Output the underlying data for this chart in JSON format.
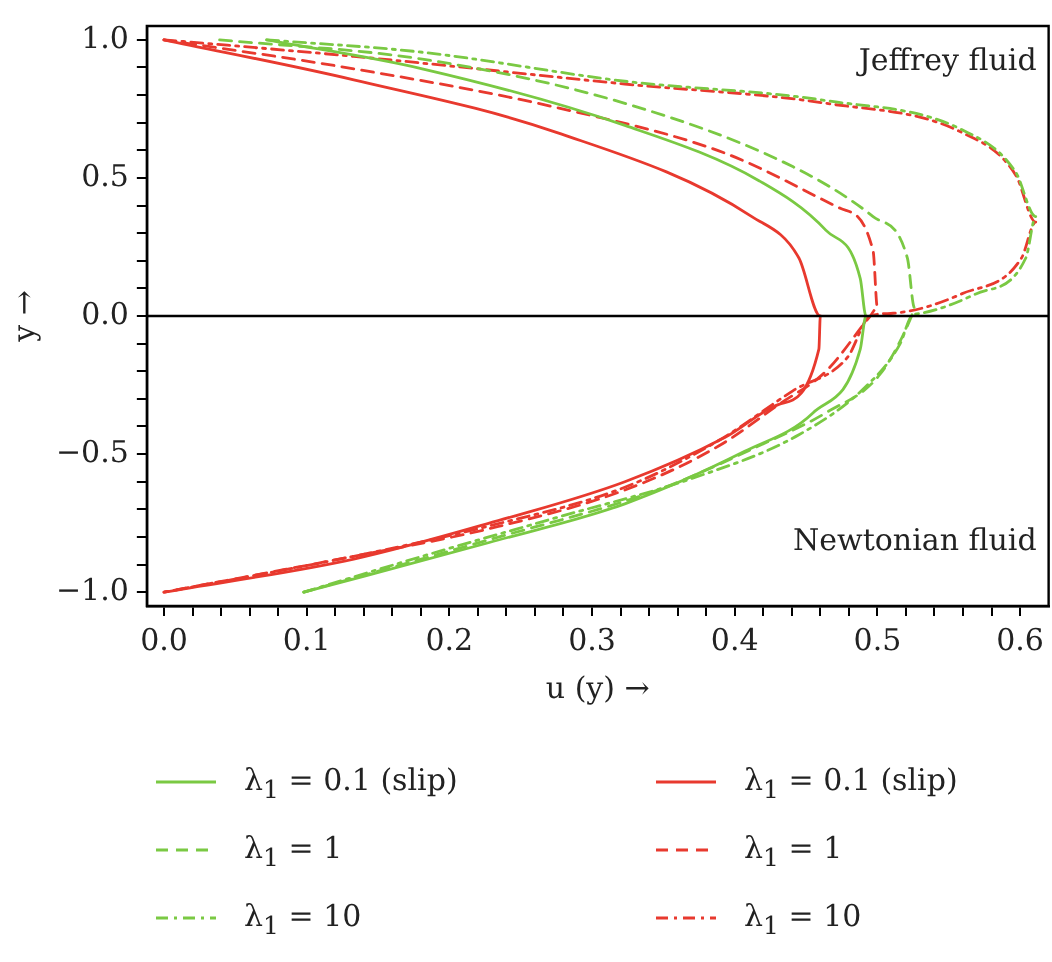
{
  "chart_data": {
    "type": "line",
    "xlabel": "u (y) →",
    "ylabel": "y →",
    "xlim": [
      -0.012,
      0.62
    ],
    "ylim": [
      -1.05,
      1.05
    ],
    "xticks": [
      {
        "value": 0,
        "label": "0.0"
      },
      {
        "value": 0.02,
        "label": null
      },
      {
        "value": 0.04,
        "label": null
      },
      {
        "value": 0.06,
        "label": null
      },
      {
        "value": 0.08,
        "label": null
      },
      {
        "value": 0.1,
        "label": "0.1"
      },
      {
        "value": 0.12,
        "label": null
      },
      {
        "value": 0.14,
        "label": null
      },
      {
        "value": 0.16,
        "label": null
      },
      {
        "value": 0.18,
        "label": null
      },
      {
        "value": 0.2,
        "label": "0.2"
      },
      {
        "value": 0.22,
        "label": null
      },
      {
        "value": 0.24,
        "label": null
      },
      {
        "value": 0.26,
        "label": null
      },
      {
        "value": 0.28,
        "label": null
      },
      {
        "value": 0.3,
        "label": "0.3"
      },
      {
        "value": 0.32,
        "label": null
      },
      {
        "value": 0.34,
        "label": null
      },
      {
        "value": 0.36,
        "label": null
      },
      {
        "value": 0.38,
        "label": null
      },
      {
        "value": 0.4,
        "label": "0.4"
      },
      {
        "value": 0.42,
        "label": null
      },
      {
        "value": 0.44,
        "label": null
      },
      {
        "value": 0.46,
        "label": null
      },
      {
        "value": 0.48,
        "label": null
      },
      {
        "value": 0.5,
        "label": "0.5"
      },
      {
        "value": 0.52,
        "label": null
      },
      {
        "value": 0.54,
        "label": null
      },
      {
        "value": 0.56,
        "label": null
      },
      {
        "value": 0.58,
        "label": null
      },
      {
        "value": 0.6,
        "label": "0.6"
      }
    ],
    "yticks": [
      {
        "value": -1,
        "label": "−1.0"
      },
      {
        "value": -0.9,
        "label": null
      },
      {
        "value": -0.8,
        "label": null
      },
      {
        "value": -0.7,
        "label": null
      },
      {
        "value": -0.6,
        "label": null
      },
      {
        "value": -0.5,
        "label": "−0.5"
      },
      {
        "value": -0.4,
        "label": null
      },
      {
        "value": -0.3,
        "label": null
      },
      {
        "value": -0.2,
        "label": null
      },
      {
        "value": -0.1,
        "label": null
      },
      {
        "value": 0,
        "label": "0.0"
      },
      {
        "value": 0.1,
        "label": null
      },
      {
        "value": 0.2,
        "label": null
      },
      {
        "value": 0.3,
        "label": null
      },
      {
        "value": 0.4,
        "label": null
      },
      {
        "value": 0.5,
        "label": "0.5"
      },
      {
        "value": 0.6,
        "label": null
      },
      {
        "value": 0.7,
        "label": null
      },
      {
        "value": 0.8,
        "label": null
      },
      {
        "value": 0.9,
        "label": null
      },
      {
        "value": 1,
        "label": "1.0"
      }
    ],
    "grid": false,
    "marker": "none",
    "legend": "bottom",
    "ref_lines": [
      {
        "axis": "y",
        "value": 0,
        "color": "#000000",
        "line_style": "solid"
      }
    ],
    "annotations": [
      "Jeffrey fluid",
      "Newtonian fluid"
    ],
    "series": [
      {
        "name": "λ$_{1}$ = 0.1 (slip)",
        "color": "#7ac943",
        "line_style": "solid",
        "x": [
          0.072,
          0.181,
          0.323,
          0.417,
          0.464,
          0.488,
          0.492,
          0.488,
          0.455,
          0.407,
          0.323,
          0.228,
          0.098
        ],
        "values": [
          1.0,
          0.895,
          0.69,
          0.49,
          0.31,
          0.135,
          0,
          -0.12,
          -0.35,
          -0.49,
          -0.68,
          -0.82,
          -1.0
        ]
      },
      {
        "name": "λ$_{1}$ = 1",
        "color": "#7ac943",
        "line_style": "dashed",
        "x": [
          0.039,
          0.181,
          0.323,
          0.441,
          0.497,
          0.521,
          0.526,
          0.524,
          0.502,
          0.464,
          0.417,
          0.346,
          0.228,
          0.098
        ],
        "values": [
          1.0,
          0.93,
          0.77,
          0.54,
          0.36,
          0.21,
          0.03,
          0,
          -0.21,
          -0.35,
          -0.47,
          -0.63,
          -0.81,
          -1.0
        ]
      },
      {
        "name": "λ$_{1}$ = 10",
        "color": "#7ac943",
        "line_style": "dashdot",
        "x": [
          0.072,
          0.181,
          0.323,
          0.464,
          0.559,
          0.597,
          0.611,
          0.604,
          0.569,
          0.531,
          0.524,
          0.516,
          0.493,
          0.445,
          0.369,
          0.275,
          0.181,
          0.098
        ],
        "values": [
          1.0,
          0.955,
          0.85,
          0.78,
          0.675,
          0.52,
          0.36,
          0.21,
          0.08,
          0.01,
          0,
          -0.1,
          -0.25,
          -0.43,
          -0.59,
          -0.73,
          -0.87,
          -1.0
        ]
      },
      {
        "name": "λ$_{1}$ = 0.1 (slip)",
        "color": "#e8392e",
        "line_style": "solid",
        "x": [
          0,
          0.133,
          0.275,
          0.412,
          0.445,
          0.46,
          0.459,
          0.431,
          0.393,
          0.323,
          0.228,
          0.133,
          0
        ],
        "values": [
          1.0,
          0.855,
          0.665,
          0.36,
          0.21,
          0,
          -0.12,
          -0.32,
          -0.44,
          -0.6,
          -0.75,
          -0.88,
          -1.0
        ]
      },
      {
        "name": "λ$_{1}$ = 1",
        "color": "#e8392e",
        "line_style": "dashed",
        "x": [
          0,
          0.133,
          0.275,
          0.393,
          0.474,
          0.497,
          0.5,
          0.495,
          0.464,
          0.431,
          0.389,
          0.323,
          0.228,
          0.133,
          0
        ],
        "values": [
          1.0,
          0.895,
          0.755,
          0.59,
          0.39,
          0.235,
          0.03,
          0,
          -0.2,
          -0.32,
          -0.47,
          -0.63,
          -0.77,
          -0.87,
          -1.0
        ]
      },
      {
        "name": "λ$_{1}$ = 10",
        "color": "#e8392e",
        "line_style": "dashdot",
        "x": [
          0,
          0.133,
          0.323,
          0.464,
          0.559,
          0.597,
          0.611,
          0.601,
          0.559,
          0.511,
          0.495,
          0.479,
          0.441,
          0.389,
          0.323,
          0.228,
          0.133,
          0
        ],
        "values": [
          1.0,
          0.94,
          0.84,
          0.77,
          0.665,
          0.51,
          0.34,
          0.21,
          0.08,
          0.01,
          0,
          -0.15,
          -0.27,
          -0.45,
          -0.62,
          -0.76,
          -0.87,
          -1.0
        ]
      }
    ]
  }
}
